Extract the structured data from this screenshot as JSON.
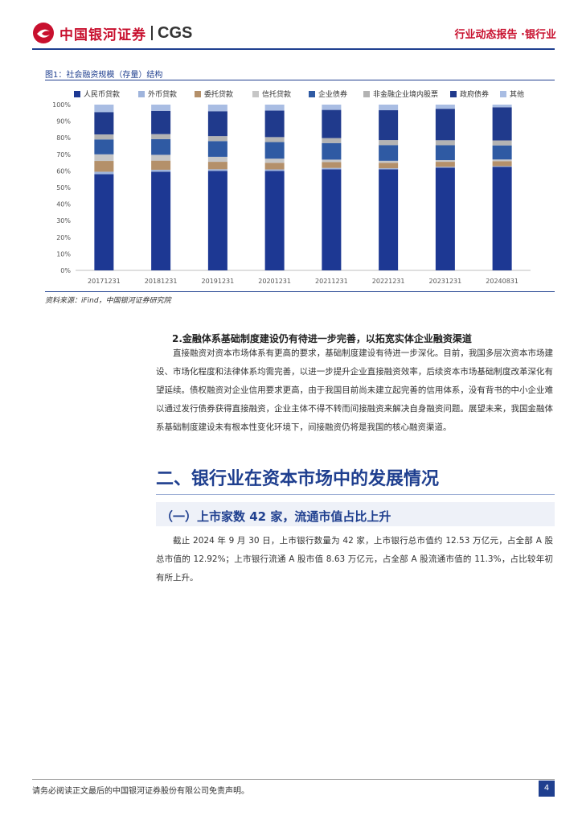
{
  "header": {
    "logo_cn": "中国银河证券",
    "logo_en": "CGS",
    "report_type": "行业动态报告 ·银行业"
  },
  "figure": {
    "title": "图1：社会融资规模（存量）结构",
    "source": "资料来源：iFind，中国银河证券研究院"
  },
  "colors": {
    "brand_red": "#c8102e",
    "brand_blue": "#1f3f8f",
    "series": [
      "#1d3893",
      "#9fb4dc",
      "#b4906a",
      "#c6c6c6",
      "#2f5aa3",
      "#b3b3b3",
      "#203a8c",
      "#a9bde3"
    ]
  },
  "chart_data": {
    "type": "bar",
    "stacked": true,
    "categories": [
      "20171231",
      "20181231",
      "20191231",
      "20201231",
      "20211231",
      "20221231",
      "20231231",
      "20240831"
    ],
    "yticks": [
      "0%",
      "10%",
      "20%",
      "30%",
      "40%",
      "50%",
      "60%",
      "70%",
      "80%",
      "90%",
      "100%"
    ],
    "ylim": [
      0,
      100
    ],
    "legend_position": "top",
    "series": [
      {
        "name": "人民币贷款",
        "values": [
          58.0,
          59.5,
          60.0,
          60.0,
          61.0,
          61.0,
          62.0,
          62.5
        ]
      },
      {
        "name": "外币贷款",
        "values": [
          1.5,
          1.2,
          1.0,
          0.9,
          0.8,
          0.6,
          0.5,
          0.4
        ]
      },
      {
        "name": "委托贷款",
        "values": [
          6.5,
          5.5,
          4.5,
          4.0,
          3.5,
          3.3,
          3.0,
          3.0
        ]
      },
      {
        "name": "信托贷款",
        "values": [
          4.0,
          3.5,
          3.0,
          2.5,
          1.5,
          1.2,
          1.0,
          1.0
        ]
      },
      {
        "name": "企业债券",
        "values": [
          9.0,
          9.5,
          9.5,
          10.0,
          10.0,
          9.5,
          9.0,
          8.5
        ]
      },
      {
        "name": "非金融企业境内股票",
        "values": [
          3.0,
          3.0,
          3.0,
          3.0,
          3.0,
          3.0,
          3.0,
          3.0
        ]
      },
      {
        "name": "政府债券",
        "values": [
          13.5,
          14.0,
          15.0,
          16.0,
          17.0,
          18.0,
          19.0,
          20.0
        ]
      },
      {
        "name": "其他",
        "values": [
          4.5,
          3.8,
          4.0,
          3.6,
          3.2,
          3.4,
          2.5,
          1.6
        ]
      }
    ]
  },
  "section": {
    "subheading": "2.金融体系基础制度建设仍有待进一步完善，以拓宽实体企业融资渠道",
    "para1": "直接融资对资本市场体系有更高的要求，基础制度建设有待进一步深化。目前，我国多层次资本市场建设、市场化程度和法律体系均需完善，以进一步提升企业直接融资效率，后续资本市场基础制度改革深化有望延续。债权融资对企业信用要求更高，由于我国目前尚未建立起完善的信用体系，没有背书的中小企业难以通过发行债券获得直接融资，企业主体不得不转而间接融资来解决自身融资问题。展望未来，我国金融体系基础制度建设未有根本性变化环境下，间接融资仍将是我国的核心融资渠道。",
    "h2": "二、银行业在资本市场中的发展情况",
    "h3": "（一）上市家数 42 家，流通市值占比上升",
    "para2": "截止 2024 年 9 月 30 日，上市银行数量为 42 家，上市银行总市值约 12.53 万亿元，占全部 A 股总市值的 12.92%；上市银行流通 A 股市值 8.63 万亿元，占全部 A 股流通市值的 11.3%，占比较年初有所上升。"
  },
  "footer": {
    "disclaimer": "请务必阅读正文最后的中国银河证券股份有限公司免责声明。",
    "page": "4"
  }
}
